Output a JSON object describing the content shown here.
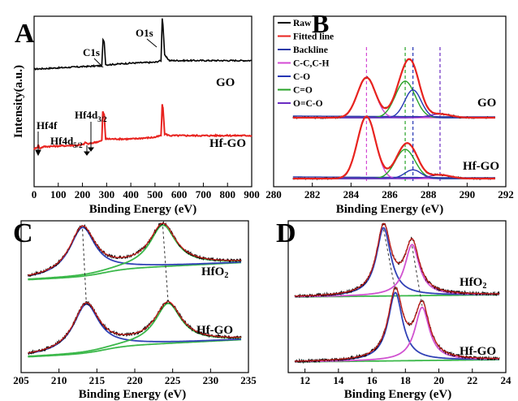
{
  "colors": {
    "raw": "#000000",
    "fitted": "#e8231f",
    "backline": "#2b3aa8",
    "cc_ch": "#d44ad4",
    "co": "#2536b4",
    "c_eq_o": "#27a227",
    "o_eq_co": "#6a2bc2",
    "hf_green": "#3bb84a",
    "hf_blue": "#3142b6",
    "hf_pink": "#d052d0"
  },
  "chart_data": [
    {
      "panel": "A",
      "type": "line",
      "xlabel": "Binding Energy (eV)",
      "ylabel": "Intensity(a.u.)",
      "xlim": [
        0,
        900
      ],
      "xticks": [
        "0",
        "100",
        "200",
        "300",
        "400",
        "500",
        "600",
        "700",
        "800",
        "900"
      ],
      "series": [
        {
          "name": "GO",
          "color": "#000000",
          "baseline": 0.69,
          "x": [
            0,
            280,
            285,
            290,
            296,
            300,
            400,
            500,
            525,
            530,
            533,
            540,
            560,
            600,
            700,
            800,
            900
          ],
          "y": [
            0.69,
            0.71,
            0.86,
            0.85,
            0.72,
            0.715,
            0.725,
            0.73,
            0.74,
            0.99,
            0.95,
            0.77,
            0.74,
            0.74,
            0.74,
            0.74,
            0.74
          ]
        },
        {
          "name": "Hf-GO",
          "color": "#e8231f",
          "baseline": 0.22,
          "x": [
            0,
            15,
            18,
            22,
            40,
            200,
            214,
            222,
            280,
            284,
            290,
            296,
            400,
            500,
            525,
            530,
            533,
            540,
            560,
            700,
            900
          ],
          "y": [
            0.22,
            0.235,
            0.245,
            0.225,
            0.235,
            0.245,
            0.26,
            0.25,
            0.27,
            0.44,
            0.42,
            0.28,
            0.28,
            0.29,
            0.3,
            0.48,
            0.46,
            0.31,
            0.3,
            0.3,
            0.3
          ]
        }
      ],
      "annotations": {
        "panel_letter": "A",
        "c1s": "C1s",
        "o1s": "O1s",
        "hf4d32": "Hf4d",
        "hf4d32_sub": "3/2",
        "hf4f": "Hf4f",
        "hf4d52": "Hf4d",
        "hf4d52_sub": "5/2",
        "go": "GO",
        "hfgo": "Hf-GO"
      }
    },
    {
      "panel": "B",
      "type": "line",
      "xlabel": "Binding Energy (eV)",
      "xlim": [
        280,
        292
      ],
      "xticks": [
        "280",
        "282",
        "284",
        "286",
        "288",
        "290",
        "292"
      ],
      "legend": [
        "Raw",
        "Fitted line",
        "Backline",
        "C-C,C-H",
        "C-O",
        "C=O",
        "O=C-O"
      ],
      "legend_position": "top-left",
      "peaks_eV": {
        "C-C,C-H": 284.8,
        "C=O": 286.8,
        "C-O": 287.2,
        "O=C-O": 288.6
      },
      "stacks": [
        {
          "name": "GO",
          "components": {
            "C-C,C-H": 0.55,
            "C=O": 0.5,
            "C-O": 0.38,
            "O=C-O": 0.05
          }
        },
        {
          "name": "Hf-GO",
          "components": {
            "C-C,C-H": 0.85,
            "C=O": 0.4,
            "C-O": 0.12,
            "O=C-O": 0.05
          }
        }
      ],
      "annotations": {
        "panel_letter": "B",
        "go": "GO",
        "hfgo": "Hf-GO"
      }
    },
    {
      "panel": "C",
      "type": "line",
      "xlabel": "Binding Energy (eV)",
      "xlim": [
        205,
        235
      ],
      "xticks": [
        "205",
        "210",
        "215",
        "220",
        "225",
        "230",
        "235"
      ],
      "stacks": [
        {
          "name": "HfO2",
          "peaks_eV": [
            213.1,
            223.7
          ],
          "heights": [
            1.0,
            0.85
          ]
        },
        {
          "name": "Hf-GO",
          "peaks_eV": [
            213.6,
            224.4
          ],
          "heights": [
            1.0,
            0.82
          ]
        }
      ],
      "annotations": {
        "panel_letter": "C",
        "hfo2": "HfO",
        "hfo2_sub": "2",
        "hfgo": "Hf-GO"
      }
    },
    {
      "panel": "D",
      "type": "line",
      "xlabel": "Binding Energy (eV)",
      "xlim": [
        11,
        24
      ],
      "xticks": [
        "12",
        "14",
        "16",
        "18",
        "20",
        "22",
        "24"
      ],
      "stacks": [
        {
          "name": "HfO2",
          "peaks_eV": [
            16.7,
            18.4
          ],
          "heights": [
            1.0,
            0.75
          ]
        },
        {
          "name": "Hf-GO",
          "peaks_eV": [
            17.4,
            19.0
          ],
          "heights": [
            1.0,
            0.78
          ]
        }
      ],
      "annotations": {
        "panel_letter": "D",
        "hfo2": "HfO",
        "hfo2_sub": "2",
        "hfgo": "Hf-GO"
      }
    }
  ]
}
